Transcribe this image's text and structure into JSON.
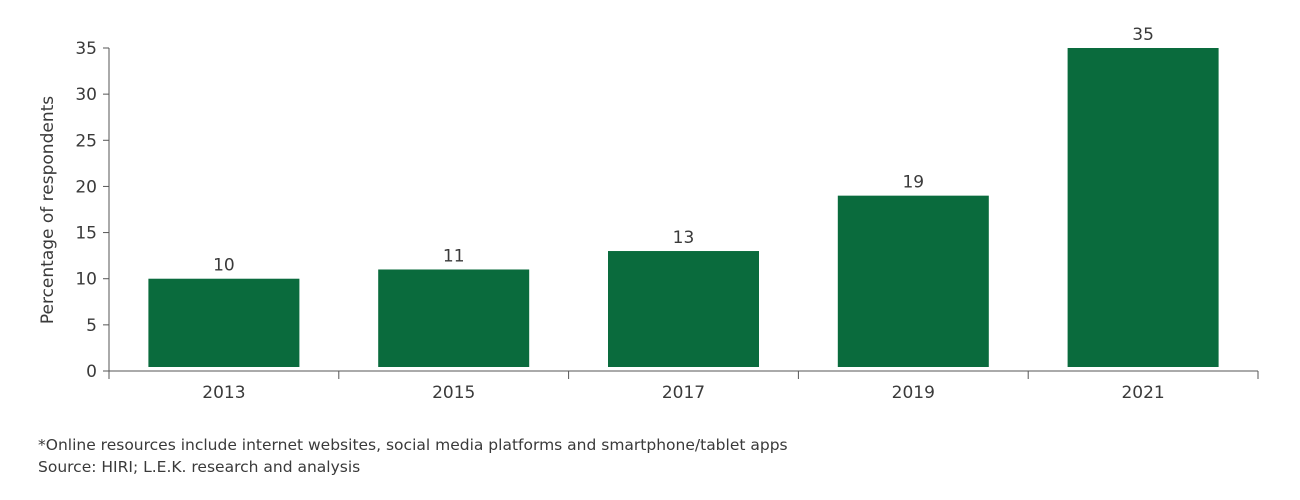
{
  "chart_data": {
    "type": "bar",
    "categories": [
      "2013",
      "2015",
      "2017",
      "2019",
      "2021"
    ],
    "values": [
      10,
      11,
      13,
      19,
      35
    ],
    "data_labels": [
      "10",
      "11",
      "13",
      "19",
      "35"
    ],
    "title": "",
    "xlabel": "",
    "ylabel": "Percentage of respondents",
    "ylim": [
      0,
      35
    ],
    "yticks": [
      0,
      5,
      10,
      15,
      20,
      25,
      30,
      35
    ],
    "grid": false,
    "bar_color": "#0a6b3d"
  },
  "footnotes": {
    "note": "*Online resources include internet websites, social media platforms and smartphone/tablet apps",
    "source": "Source: HIRI; L.E.K. research and analysis"
  }
}
